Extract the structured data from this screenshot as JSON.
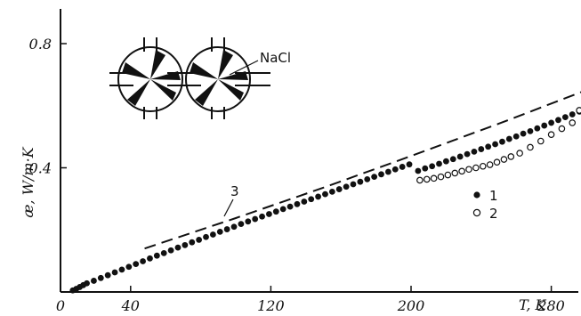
{
  "chart_data": {
    "type": "scatter",
    "title": "",
    "xlabel": "T, K",
    "ylabel": "æ, W/m·K",
    "xlim": [
      0,
      330
    ],
    "ylim": [
      0,
      0.95
    ],
    "x_ticks": [
      "0",
      "40",
      "120",
      "200",
      "280"
    ],
    "x_tick_values": [
      0,
      40,
      120,
      200,
      280
    ],
    "y_ticks": [
      "0.4",
      "0.8"
    ],
    "y_tick_values": [
      0.4,
      0.8
    ],
    "grid": false,
    "legend": [
      {
        "label": "1",
        "marker": "filled-circle"
      },
      {
        "label": "2",
        "marker": "open-circle"
      }
    ],
    "inset_label": "NaCl",
    "curve_label": "3",
    "series": [
      {
        "name": "1",
        "marker": "filled",
        "x": [
          7,
          9,
          11,
          13,
          15,
          19,
          23,
          27,
          31,
          35,
          39,
          43,
          47,
          51,
          55,
          59,
          63,
          67,
          71,
          75,
          79,
          83,
          87,
          91,
          95,
          99,
          103,
          107,
          111,
          115,
          119,
          123,
          127,
          131,
          135,
          139,
          143,
          147,
          151,
          155,
          159,
          163,
          167,
          171,
          175,
          179,
          183,
          187,
          191,
          195,
          199,
          204,
          208,
          212,
          216,
          220,
          224,
          228,
          232,
          236,
          240,
          244,
          248,
          252,
          256,
          260,
          264,
          268,
          272,
          276,
          280,
          284,
          288,
          292,
          296,
          300,
          304
        ],
        "y": [
          0.005,
          0.01,
          0.016,
          0.022,
          0.028,
          0.036,
          0.045,
          0.054,
          0.063,
          0.072,
          0.081,
          0.09,
          0.099,
          0.108,
          0.117,
          0.125,
          0.134,
          0.143,
          0.151,
          0.16,
          0.168,
          0.177,
          0.185,
          0.194,
          0.202,
          0.21,
          0.219,
          0.227,
          0.235,
          0.243,
          0.251,
          0.259,
          0.267,
          0.275,
          0.283,
          0.291,
          0.299,
          0.307,
          0.315,
          0.323,
          0.331,
          0.339,
          0.347,
          0.355,
          0.363,
          0.371,
          0.379,
          0.387,
          0.395,
          0.403,
          0.411,
          0.39,
          0.398,
          0.405,
          0.413,
          0.421,
          0.428,
          0.436,
          0.444,
          0.452,
          0.46,
          0.468,
          0.476,
          0.484,
          0.493,
          0.501,
          0.51,
          0.518,
          0.527,
          0.536,
          0.545,
          0.554,
          0.563,
          0.572,
          0.581,
          0.59,
          0.6
        ]
      },
      {
        "name": "2",
        "marker": "open",
        "x": [
          205,
          209,
          213,
          217,
          221,
          225,
          229,
          233,
          237,
          241,
          245,
          249,
          253,
          257,
          262,
          268,
          274,
          280,
          286,
          292,
          296
        ],
        "y": [
          0.36,
          0.363,
          0.366,
          0.371,
          0.377,
          0.383,
          0.389,
          0.395,
          0.4,
          0.405,
          0.41,
          0.418,
          0.427,
          0.436,
          0.447,
          0.466,
          0.486,
          0.507,
          0.526,
          0.545,
          0.585
        ]
      }
    ],
    "dashed_curve": {
      "name": "3",
      "x": [
        48,
        100,
        150,
        200,
        250,
        300
      ],
      "y": [
        0.14,
        0.238,
        0.336,
        0.438,
        0.542,
        0.65
      ]
    }
  }
}
